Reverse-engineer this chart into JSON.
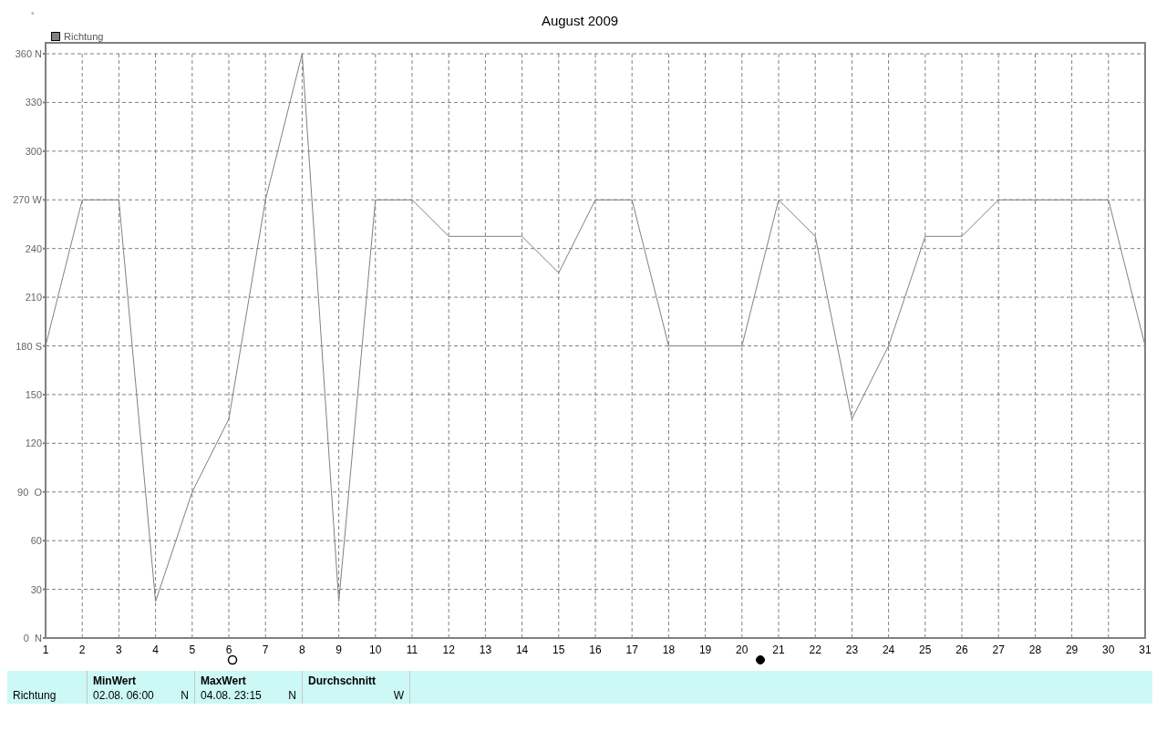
{
  "chart_data": {
    "type": "line",
    "title": "August 2009",
    "ylabel": "°",
    "x": [
      1,
      2,
      3,
      4,
      5,
      6,
      7,
      8,
      9,
      10,
      11,
      12,
      13,
      14,
      15,
      16,
      17,
      18,
      19,
      20,
      21,
      22,
      23,
      24,
      25,
      26,
      27,
      28,
      29,
      30,
      31
    ],
    "series": [
      {
        "name": "Richtung",
        "color": "#808080",
        "values": [
          180,
          270,
          270,
          22.5,
          90,
          135,
          270,
          360,
          22.5,
          270,
          270,
          247.5,
          247.5,
          247.5,
          225,
          270,
          270,
          180,
          180,
          180,
          270,
          247.5,
          135,
          180,
          247.5,
          247.5,
          270,
          270,
          270,
          270,
          180
        ]
      }
    ],
    "xlim": [
      1,
      31
    ],
    "xticks": [
      1,
      2,
      3,
      4,
      5,
      6,
      7,
      8,
      9,
      10,
      11,
      12,
      13,
      14,
      15,
      16,
      17,
      18,
      19,
      20,
      21,
      22,
      23,
      24,
      25,
      26,
      27,
      28,
      29,
      30,
      31
    ],
    "ylim": [
      0,
      360
    ],
    "yticks": [
      {
        "value": 0,
        "label": "0  N"
      },
      30,
      60,
      {
        "value": 90,
        "label": "90  O"
      },
      120,
      150,
      {
        "value": 180,
        "label": "180 S"
      },
      210,
      240,
      {
        "value": 270,
        "label": "270 W"
      },
      300,
      330,
      {
        "value": 360,
        "label": "360 N"
      }
    ],
    "grid": true,
    "legend": "top left",
    "marker": "none",
    "line_style": "solid",
    "annotations": [
      "Richtung",
      "MinWert",
      "02.08.  06:00",
      "N",
      "MaxWert",
      "04.08.  23:15",
      "N",
      "Durchschnitt",
      "W"
    ]
  }
}
